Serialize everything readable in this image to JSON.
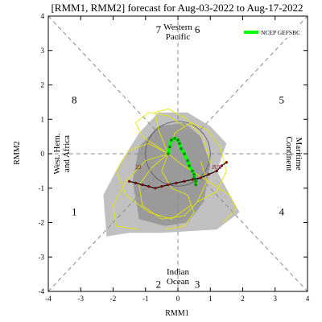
{
  "chart_data": {
    "type": "line",
    "title": "[RMM1, RMM2] forecast for Aug-03-2022 to Aug-17-2022",
    "xlabel": "RMM1",
    "ylabel": "RMM2",
    "xlim": [
      -4,
      4
    ],
    "ylim": [
      -4,
      4
    ],
    "x_ticks": [
      -4,
      -3,
      -2,
      -1,
      0,
      1,
      2,
      3,
      4
    ],
    "y_ticks": [
      -4,
      -3,
      -2,
      -1,
      0,
      1,
      2,
      3,
      4
    ],
    "legend": {
      "position": "top-right",
      "entries": [
        {
          "name": "NCEP GEFSBC",
          "color": "#00ff00"
        }
      ]
    },
    "phase_labels": [
      {
        "text": "1",
        "x": -3.2,
        "y": -1.7
      },
      {
        "text": "2",
        "x": -0.6,
        "y": -3.8
      },
      {
        "text": "3",
        "x": 0.6,
        "y": -3.8
      },
      {
        "text": "4",
        "x": 3.2,
        "y": -1.7
      },
      {
        "text": "5",
        "x": 3.2,
        "y": 1.55
      },
      {
        "text": "6",
        "x": 0.6,
        "y": 3.6
      },
      {
        "text": "7",
        "x": -0.6,
        "y": 3.6
      },
      {
        "text": "8",
        "x": -3.2,
        "y": 1.55
      }
    ],
    "regions": [
      {
        "name": "Western\nPacific",
        "x": 0,
        "y": 3.55,
        "anchor": "middle"
      },
      {
        "name": "Indian\nOcean",
        "x": 0,
        "y": -3.55,
        "anchor": "middle"
      },
      {
        "name": "West. Hem.\nand Africa",
        "x": -3.6,
        "y": 0,
        "rotate": -90
      },
      {
        "name": "Maritime\nContinent",
        "x": 3.6,
        "y": 0,
        "rotate": 90
      }
    ],
    "plume_outer": [
      [
        -2.2,
        -2.4
      ],
      [
        -2.3,
        -1.2
      ],
      [
        -1.8,
        -0.3
      ],
      [
        -1.2,
        0.6
      ],
      [
        -0.6,
        1.2
      ],
      [
        0.3,
        1.2
      ],
      [
        1.0,
        0.8
      ],
      [
        1.5,
        0.3
      ],
      [
        1.2,
        -0.5
      ],
      [
        1.9,
        -1.7
      ],
      [
        1.2,
        -2.2
      ],
      [
        -0.5,
        -2.3
      ],
      [
        -1.5,
        -2.3
      ]
    ],
    "plume_inner": [
      [
        -1.2,
        -1.9
      ],
      [
        -1.4,
        -0.8
      ],
      [
        -1.2,
        0.2
      ],
      [
        -0.6,
        0.8
      ],
      [
        0.2,
        0.9
      ],
      [
        0.7,
        0.5
      ],
      [
        1.0,
        -0.3
      ],
      [
        0.8,
        -1.4
      ],
      [
        0.3,
        -2.0
      ],
      [
        -0.4,
        -2.1
      ]
    ],
    "series": [
      {
        "name": "NCEP GEFSBC",
        "color": "#00ff00",
        "x": [
          -0.3,
          -0.25,
          -0.2,
          -0.1,
          0.0,
          0.05,
          0.1,
          0.2,
          0.3,
          0.35,
          0.45,
          0.5,
          0.5,
          0.55,
          0.55
        ],
        "y": [
          0.0,
          0.2,
          0.4,
          0.45,
          0.4,
          0.3,
          0.15,
          0.0,
          -0.2,
          -0.35,
          -0.5,
          -0.6,
          -0.7,
          -0.8,
          -0.9
        ]
      },
      {
        "name": "observed",
        "color": "#000000",
        "x": [
          1.5,
          1.35,
          1.2,
          0.95,
          0.7,
          0.45,
          0.2,
          -0.05,
          -0.3,
          -0.5,
          -0.7,
          -0.9,
          -1.1,
          -1.3,
          -1.5
        ],
        "y": [
          -0.25,
          -0.35,
          -0.5,
          -0.6,
          -0.7,
          -0.75,
          -0.8,
          -0.85,
          -0.9,
          -0.95,
          -1.0,
          -0.95,
          -0.9,
          -0.85,
          -0.8
        ]
      }
    ],
    "observed_labels": [
      {
        "text": "JUL",
        "x": 1.05,
        "y": -0.45
      },
      {
        "text": "22",
        "x": -1.3,
        "y": -0.45
      }
    ],
    "ensemble_members": [
      {
        "color": "#e6e600",
        "x": [
          -0.3,
          -0.8,
          -1.2,
          -1.1,
          -0.5,
          0.2,
          0.6,
          0.9,
          0.7
        ],
        "y": [
          0.0,
          -0.4,
          -0.9,
          -1.5,
          -1.9,
          -1.8,
          -1.4,
          -0.8,
          -0.2
        ]
      },
      {
        "color": "#e6e600",
        "x": [
          -0.3,
          -0.9,
          -1.5,
          -1.9,
          -1.6,
          -0.9,
          -0.2,
          0.4
        ],
        "y": [
          0.0,
          0.3,
          0.1,
          -0.5,
          -1.2,
          -1.7,
          -1.9,
          -1.5
        ]
      },
      {
        "color": "#e6e600",
        "x": [
          -0.3,
          -0.1,
          0.4,
          0.9,
          1.3,
          1.5,
          1.2,
          0.6
        ],
        "y": [
          0.0,
          0.6,
          0.9,
          0.7,
          0.2,
          -0.5,
          -1.1,
          -1.4
        ]
      },
      {
        "color": "#e6e600",
        "x": [
          -0.3,
          -0.6,
          -0.7,
          -0.3,
          0.3,
          0.8,
          1.0
        ],
        "y": [
          0.0,
          0.7,
          1.2,
          1.3,
          1.0,
          0.4,
          -0.3
        ]
      },
      {
        "color": "#e6e600",
        "x": [
          -0.3,
          -1.0,
          -1.6,
          -2.0,
          -1.9,
          -1.2
        ],
        "y": [
          0.0,
          -0.2,
          -0.8,
          -1.5,
          -2.1,
          -2.2
        ]
      },
      {
        "color": "#e6e600",
        "x": [
          -0.3,
          0.1,
          0.6,
          1.1,
          1.6,
          1.8,
          1.4
        ],
        "y": [
          0.0,
          -0.3,
          -0.6,
          -0.9,
          -1.2,
          -1.6,
          -2.0
        ]
      },
      {
        "color": "#e6e600",
        "x": [
          -0.3,
          -0.5,
          -0.2,
          0.3,
          0.5,
          0.2,
          -0.4
        ],
        "y": [
          0.0,
          -0.5,
          -1.0,
          -1.2,
          -1.7,
          -2.1,
          -2.2
        ]
      },
      {
        "color": "#e6e600",
        "x": [
          -0.3,
          -1.1,
          -1.3,
          -0.9,
          -0.3,
          0.2
        ],
        "y": [
          0.0,
          0.5,
          0.9,
          1.2,
          1.1,
          0.8
        ]
      }
    ]
  }
}
